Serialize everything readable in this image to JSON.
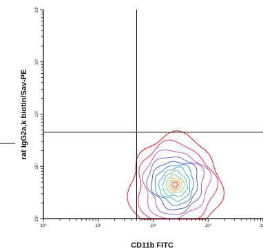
{
  "chart_data": {
    "type": "contour",
    "xlabel": "CD11b FITC",
    "ylabel": "rat IgG2a,k biotin/Sav-PE",
    "xscale": "log",
    "yscale": "log",
    "xlim": [
      1,
      10000
    ],
    "ylim": [
      1,
      10000
    ],
    "x_ticks": [
      "10⁰",
      "10¹",
      "10²",
      "10³",
      "10⁴"
    ],
    "y_ticks": [
      "10⁰",
      "10¹",
      "10²",
      "10³",
      "10⁴"
    ],
    "quadrant_gate": {
      "x": 50,
      "y": 45
    },
    "population": {
      "center_x": 250,
      "center_y": 4.5
    },
    "contours": [
      {
        "level": 1,
        "color": "#e8242e",
        "rx_dex": 0.83,
        "ry_dex": 0.92
      },
      {
        "level": 2,
        "color": "#ec3e6a",
        "rx_dex": 0.7,
        "ry_dex": 0.78
      },
      {
        "level": 3,
        "color": "#c74bb0",
        "rx_dex": 0.59,
        "ry_dex": 0.65
      },
      {
        "level": 4,
        "color": "#6f55c8",
        "rx_dex": 0.5,
        "ry_dex": 0.55
      },
      {
        "level": 5,
        "color": "#3553c9",
        "rx_dex": 0.42,
        "ry_dex": 0.46
      },
      {
        "level": 6,
        "color": "#2f79d0",
        "rx_dex": 0.35,
        "ry_dex": 0.38
      },
      {
        "level": 7,
        "color": "#3aa3d6",
        "rx_dex": 0.28,
        "ry_dex": 0.31
      },
      {
        "level": 8,
        "color": "#3bbdb0",
        "rx_dex": 0.22,
        "ry_dex": 0.24
      },
      {
        "level": 9,
        "color": "#7cc86a",
        "rx_dex": 0.16,
        "ry_dex": 0.17
      },
      {
        "level": 10,
        "color": "#d9b23a",
        "rx_dex": 0.11,
        "ry_dex": 0.12
      },
      {
        "level": 11,
        "color": "#e87a3a",
        "rx_dex": 0.07,
        "ry_dex": 0.08
      },
      {
        "level": 12,
        "color": "#e0303a",
        "rx_dex": 0.04,
        "ry_dex": 0.045
      }
    ]
  }
}
